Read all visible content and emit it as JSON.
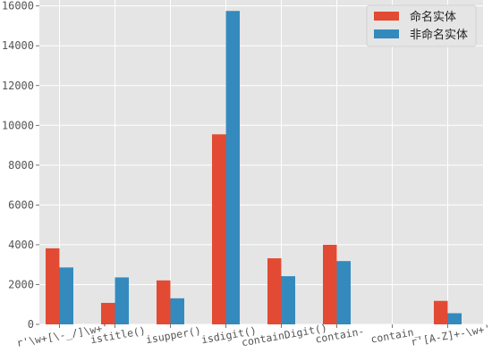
{
  "chart_data": {
    "type": "bar",
    "categories": [
      "r'\\w+[\\-_/]\\w+'",
      "istitle()",
      "isupper()",
      "isdigit()",
      "containDigit()",
      "contain-",
      "contain_",
      "r'[A-Z]+-\\w+'"
    ],
    "series": [
      {
        "name": "命名实体",
        "color": "#E24A33",
        "values": [
          3820,
          1080,
          2210,
          9550,
          3320,
          4000,
          0,
          1180
        ]
      },
      {
        "name": "非命名实体",
        "color": "#348ABD",
        "values": [
          2860,
          2360,
          1310,
          15750,
          2420,
          3180,
          0,
          560
        ]
      }
    ],
    "yticks": [
      "0",
      "2000",
      "4000",
      "6000",
      "8000",
      "10000",
      "12000",
      "14000",
      "16000"
    ],
    "ylim": [
      0,
      16300
    ],
    "grid": true,
    "legend_position": "top-right",
    "background": "#E5E5E5",
    "grid_color": "#FFFFFF",
    "title": "",
    "xlabel": "",
    "ylabel": ""
  }
}
